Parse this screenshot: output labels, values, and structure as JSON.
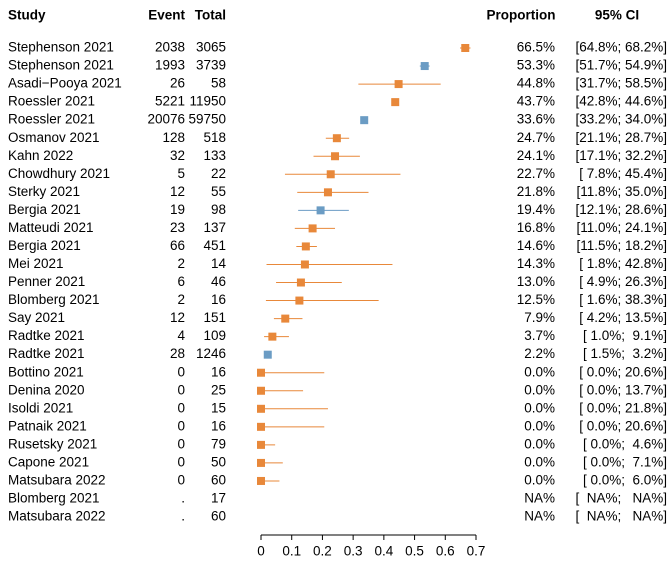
{
  "chart_data": {
    "type": "forest",
    "column_headers": [
      "Study",
      "Event",
      "Total",
      "Proportion",
      "95% CI"
    ],
    "studies": [
      "Stephenson 2021",
      "Stephenson 2021",
      "Asadi−Pooya 2021",
      "Roessler 2021",
      "Roessler 2021",
      "Osmanov 2021",
      "Kahn 2022",
      "Chowdhury 2021",
      "Sterky 2021",
      "Bergia 2021",
      "Matteudi 2021",
      "Bergia 2021",
      "Mei 2021",
      "Penner 2021",
      "Blomberg 2021",
      "Say 2021",
      "Radtke 2021",
      "Radtke 2021",
      "Bottino 2021",
      "Denina 2020",
      "Isoldi 2021",
      "Patnaik 2021",
      "Rusetsky 2021",
      "Capone 2021",
      "Matsubara 2022",
      "Blomberg 2021",
      "Matsubara 2022"
    ],
    "events": [
      2038,
      1993,
      26,
      5221,
      20076,
      128,
      32,
      5,
      12,
      19,
      23,
      66,
      2,
      6,
      2,
      12,
      4,
      28,
      0,
      0,
      0,
      0,
      0,
      0,
      0,
      ".",
      "."
    ],
    "totals": [
      3065,
      3739,
      58,
      11950,
      59750,
      518,
      133,
      22,
      55,
      98,
      137,
      451,
      14,
      46,
      16,
      151,
      109,
      1246,
      16,
      25,
      15,
      16,
      79,
      50,
      60,
      17,
      60
    ],
    "values": [
      0.665,
      0.533,
      0.448,
      0.437,
      0.336,
      0.247,
      0.241,
      0.227,
      0.218,
      0.194,
      0.168,
      0.146,
      0.143,
      0.13,
      0.125,
      0.079,
      0.037,
      0.022,
      0,
      0,
      0,
      0,
      0,
      0,
      0,
      null,
      null
    ],
    "value_labels": [
      "66.5%",
      "53.3%",
      "44.8%",
      "43.7%",
      "33.6%",
      "24.7%",
      "24.1%",
      "22.7%",
      "21.8%",
      "19.4%",
      "16.8%",
      "14.6%",
      "14.3%",
      "13.0%",
      "12.5%",
      "7.9%",
      "3.7%",
      "2.2%",
      "0.0%",
      "0.0%",
      "0.0%",
      "0.0%",
      "0.0%",
      "0.0%",
      "0.0%",
      "NA%",
      "NA%"
    ],
    "ci": [
      [
        0.648,
        0.682
      ],
      [
        0.517,
        0.549
      ],
      [
        0.317,
        0.585
      ],
      [
        0.428,
        0.446
      ],
      [
        0.332,
        0.34
      ],
      [
        0.211,
        0.287
      ],
      [
        0.171,
        0.322
      ],
      [
        0.078,
        0.454
      ],
      [
        0.118,
        0.35
      ],
      [
        0.121,
        0.286
      ],
      [
        0.11,
        0.241
      ],
      [
        0.115,
        0.182
      ],
      [
        0.018,
        0.428
      ],
      [
        0.049,
        0.263
      ],
      [
        0.016,
        0.383
      ],
      [
        0.042,
        0.135
      ],
      [
        0.01,
        0.091
      ],
      [
        0.015,
        0.032
      ],
      [
        0,
        0.206
      ],
      [
        0,
        0.137
      ],
      [
        0,
        0.218
      ],
      [
        0,
        0.206
      ],
      [
        0,
        0.046
      ],
      [
        0,
        0.071
      ],
      [
        0,
        0.06
      ],
      [
        null,
        null
      ],
      [
        null,
        null
      ]
    ],
    "ci_labels": [
      "[64.8%; 68.2%]",
      "[51.7%; 54.9%]",
      "[31.7%; 58.5%]",
      "[42.8%; 44.6%]",
      "[33.2%; 34.0%]",
      "[21.1%; 28.7%]",
      "[17.1%; 32.2%]",
      "[ 7.8%; 45.4%]",
      "[11.8%; 35.0%]",
      "[12.1%; 28.6%]",
      "[11.0%; 24.1%]",
      "[11.5%; 18.2%]",
      "[ 1.8%; 42.8%]",
      "[ 4.9%; 26.3%]",
      "[ 1.6%; 38.3%]",
      "[ 4.2%; 13.5%]",
      "[ 1.0%;  9.1%]",
      "[ 1.5%;  3.2%]",
      "[ 0.0%; 20.6%]",
      "[ 0.0%; 13.7%]",
      "[ 0.0%; 21.8%]",
      "[ 0.0%; 20.6%]",
      "[ 0.0%;  4.6%]",
      "[ 0.0%;  7.1%]",
      "[ 0.0%;  6.0%]",
      "[  NA%;   NA%]",
      "[  NA%;   NA%]"
    ],
    "colors": [
      "#e8883a",
      "#6b9cc4",
      "#e8883a",
      "#e8883a",
      "#6b9cc4",
      "#e8883a",
      "#e8883a",
      "#e8883a",
      "#e8883a",
      "#6b9cc4",
      "#e8883a",
      "#e8883a",
      "#e8883a",
      "#e8883a",
      "#e8883a",
      "#e8883a",
      "#e8883a",
      "#6b9cc4",
      "#e8883a",
      "#e8883a",
      "#e8883a",
      "#e8883a",
      "#e8883a",
      "#e8883a",
      "#e8883a",
      "#e8883a",
      "#e8883a"
    ],
    "xlim": [
      0,
      0.7
    ],
    "xticks": [
      0,
      0.1,
      0.2,
      0.3,
      0.4,
      0.5,
      0.6,
      0.7
    ]
  }
}
